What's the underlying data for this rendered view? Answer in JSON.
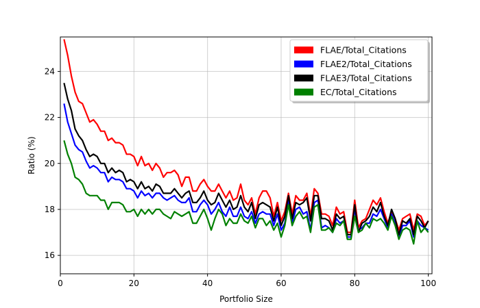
{
  "chart_data": {
    "type": "line",
    "title": "",
    "xlabel": "Portfolio Size",
    "ylabel": "Ratio (%)",
    "xlim": [
      0,
      101
    ],
    "ylim": [
      15.2,
      25.5
    ],
    "xticks": [
      0,
      20,
      40,
      60,
      80,
      100
    ],
    "yticks": [
      16,
      18,
      20,
      22,
      24
    ],
    "grid": true,
    "legend_position": "top-right",
    "x": [
      1,
      2,
      3,
      4,
      5,
      6,
      7,
      8,
      9,
      10,
      11,
      12,
      13,
      14,
      15,
      16,
      17,
      18,
      19,
      20,
      21,
      22,
      23,
      24,
      25,
      26,
      27,
      28,
      29,
      30,
      31,
      32,
      33,
      34,
      35,
      36,
      37,
      38,
      39,
      40,
      41,
      42,
      43,
      44,
      45,
      46,
      47,
      48,
      49,
      50,
      51,
      52,
      53,
      54,
      55,
      56,
      57,
      58,
      59,
      60,
      61,
      62,
      63,
      64,
      65,
      66,
      67,
      68,
      69,
      70,
      71,
      72,
      73,
      74,
      75,
      76,
      77,
      78,
      79,
      80,
      81,
      82,
      83,
      84,
      85,
      86,
      87,
      88,
      89,
      90,
      91,
      92,
      93,
      94,
      95,
      96,
      97,
      98,
      99,
      100
    ],
    "series": [
      {
        "name": "FLAE/Total_Citations",
        "color": "#ff0000",
        "values": [
          25.4,
          24.7,
          23.8,
          23.1,
          22.7,
          22.6,
          22.2,
          21.8,
          21.9,
          21.7,
          21.4,
          21.4,
          21.0,
          21.1,
          20.9,
          20.9,
          20.8,
          20.4,
          20.4,
          20.3,
          19.9,
          20.3,
          19.9,
          20.0,
          19.7,
          20.0,
          19.8,
          19.4,
          19.6,
          19.6,
          19.7,
          19.5,
          19.0,
          19.4,
          19.4,
          18.8,
          18.8,
          19.1,
          19.3,
          19.0,
          18.8,
          18.8,
          19.1,
          18.8,
          18.5,
          18.8,
          18.4,
          18.5,
          19.1,
          18.4,
          18.2,
          18.5,
          17.8,
          18.5,
          18.8,
          18.8,
          18.5,
          17.7,
          18.3,
          17.5,
          17.9,
          18.7,
          17.8,
          18.6,
          18.4,
          18.4,
          18.7,
          17.7,
          18.9,
          18.7,
          17.8,
          17.8,
          17.7,
          17.3,
          18.1,
          17.8,
          17.9,
          17.0,
          17.0,
          18.4,
          17.2,
          17.5,
          17.6,
          18.0,
          18.4,
          18.2,
          18.5,
          17.9,
          17.4,
          17.9,
          17.6,
          17.1,
          17.6,
          17.7,
          17.8,
          17.1,
          17.8,
          17.7,
          17.3,
          17.5
        ]
      },
      {
        "name": "FLAE2/Total_Citations",
        "color": "#0000ff",
        "values": [
          22.6,
          21.8,
          21.3,
          20.8,
          20.6,
          20.5,
          20.1,
          19.8,
          19.9,
          19.8,
          19.6,
          19.6,
          19.2,
          19.4,
          19.3,
          19.3,
          19.2,
          18.9,
          18.9,
          18.8,
          18.5,
          18.8,
          18.6,
          18.7,
          18.5,
          18.7,
          18.7,
          18.5,
          18.4,
          18.5,
          18.6,
          18.4,
          18.3,
          18.3,
          18.5,
          17.9,
          17.9,
          18.2,
          18.4,
          18.2,
          17.8,
          18.0,
          18.3,
          17.9,
          17.7,
          18.1,
          17.7,
          17.7,
          18.1,
          17.7,
          17.6,
          17.9,
          17.4,
          17.8,
          17.9,
          17.8,
          17.8,
          17.3,
          17.8,
          17.1,
          17.4,
          18.4,
          17.4,
          18.0,
          18.1,
          17.8,
          17.9,
          17.1,
          18.3,
          18.4,
          17.2,
          17.3,
          17.2,
          17.0,
          17.6,
          17.4,
          17.5,
          16.8,
          16.8,
          18.0,
          17.1,
          17.2,
          17.4,
          17.4,
          17.8,
          17.7,
          18.0,
          17.6,
          17.2,
          17.8,
          17.4,
          16.8,
          17.3,
          17.3,
          17.5,
          16.8,
          17.5,
          17.3,
          17.2,
          17.1
        ]
      },
      {
        "name": "FLAE3/Total_Citations",
        "color": "#000000",
        "values": [
          23.5,
          22.8,
          22.3,
          21.5,
          21.2,
          21.0,
          20.6,
          20.3,
          20.4,
          20.3,
          20.0,
          20.0,
          19.6,
          19.8,
          19.6,
          19.7,
          19.6,
          19.2,
          19.3,
          19.2,
          18.9,
          19.2,
          18.9,
          19.0,
          18.8,
          19.1,
          19.0,
          18.7,
          18.7,
          18.7,
          18.9,
          18.7,
          18.5,
          18.7,
          18.8,
          18.3,
          18.3,
          18.5,
          18.8,
          18.4,
          18.2,
          18.3,
          18.7,
          18.4,
          18.1,
          18.4,
          18.0,
          18.1,
          18.6,
          18.1,
          17.9,
          18.3,
          17.6,
          18.2,
          18.3,
          18.2,
          18.1,
          17.5,
          18.1,
          17.3,
          17.7,
          18.6,
          17.6,
          18.3,
          18.2,
          18.3,
          18.5,
          17.5,
          18.6,
          18.6,
          17.6,
          17.6,
          17.5,
          17.1,
          17.8,
          17.6,
          17.7,
          16.9,
          16.9,
          18.2,
          17.0,
          17.4,
          17.5,
          17.7,
          18.1,
          17.9,
          18.3,
          17.7,
          17.3,
          18.0,
          17.6,
          16.9,
          17.5,
          17.4,
          17.6,
          16.9,
          17.7,
          17.5,
          17.2,
          17.5
        ]
      },
      {
        "name": "EC/Total_Citations",
        "color": "#008000",
        "values": [
          21.0,
          20.4,
          20.0,
          19.4,
          19.3,
          19.1,
          18.7,
          18.6,
          18.6,
          18.6,
          18.4,
          18.4,
          18.0,
          18.3,
          18.3,
          18.3,
          18.2,
          17.9,
          17.9,
          18.0,
          17.7,
          18.0,
          17.8,
          18.0,
          17.8,
          18.0,
          18.0,
          17.8,
          17.7,
          17.6,
          17.9,
          17.8,
          17.7,
          17.8,
          17.9,
          17.4,
          17.4,
          17.7,
          18.0,
          17.6,
          17.1,
          17.6,
          18.0,
          17.8,
          17.3,
          17.6,
          17.4,
          17.4,
          17.8,
          17.5,
          17.4,
          17.7,
          17.2,
          17.6,
          17.6,
          17.3,
          17.5,
          17.1,
          17.4,
          16.8,
          17.3,
          18.2,
          17.3,
          17.7,
          17.9,
          17.6,
          17.7,
          17.0,
          18.1,
          18.2,
          17.1,
          17.1,
          17.2,
          17.0,
          17.4,
          17.3,
          17.5,
          16.7,
          16.7,
          17.7,
          17.0,
          17.1,
          17.4,
          17.2,
          17.6,
          17.5,
          17.6,
          17.4,
          17.1,
          17.7,
          17.3,
          16.7,
          17.1,
          17.2,
          17.1,
          16.5,
          17.5,
          17.0,
          17.2,
          17.0
        ]
      }
    ]
  }
}
